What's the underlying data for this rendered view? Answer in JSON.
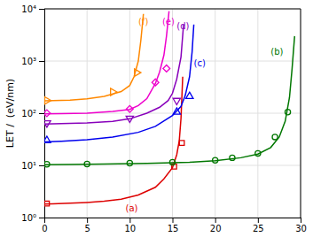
{
  "chart_data": {
    "type": "line",
    "ylabel": "LET /  (eV/nm)",
    "log": "y",
    "grid": true,
    "xlim": [
      0,
      30
    ],
    "xticks": [
      0,
      5,
      10,
      15,
      20,
      25,
      30
    ],
    "ylim": [
      1,
      10000
    ],
    "yticks": [
      {
        "value": 1,
        "label": "10⁰"
      },
      {
        "value": 10,
        "label": "10¹"
      },
      {
        "value": 100,
        "label": "10²"
      },
      {
        "value": 1000,
        "label": "10³"
      },
      {
        "value": 10000,
        "label": "10⁴"
      }
    ],
    "series": [
      {
        "type": "line",
        "color": "#dd0000",
        "x": [
          0.0,
          1,
          3,
          5,
          7,
          9,
          11,
          13,
          14,
          15,
          15.5,
          15.8,
          16.0,
          16.2
        ],
        "values": [
          1.82,
          1.84,
          1.88,
          1.95,
          2.05,
          2.25,
          2.7,
          3.8,
          5.5,
          9.0,
          16.0,
          30.0,
          80.0,
          500.0
        ]
      },
      {
        "type": "scatter",
        "color": "#dd0000",
        "marker": "square",
        "x": [
          0.3,
          15.2,
          16.1
        ],
        "values": [
          1.85,
          9.5,
          27.0
        ]
      },
      {
        "type": "line",
        "color": "#007700",
        "x": [
          0.0,
          3,
          7,
          12,
          17,
          20,
          23,
          25,
          26.5,
          27.5,
          28.2,
          28.7,
          29.0,
          29.3
        ],
        "values": [
          10.3,
          10.4,
          10.6,
          10.9,
          11.5,
          12.3,
          14.0,
          16.5,
          22.0,
          35.0,
          70.0,
          200.0,
          700.0,
          3000.0
        ]
      },
      {
        "type": "scatter",
        "color": "#007700",
        "marker": "circle",
        "x": [
          0.3,
          5,
          10,
          15,
          20,
          22,
          25,
          27,
          28.5
        ],
        "values": [
          10.5,
          10.6,
          11.0,
          11.5,
          12.5,
          14.0,
          17.0,
          35.0,
          105.0
        ]
      },
      {
        "type": "line",
        "color": "#0000ee",
        "x": [
          0.0,
          2,
          5,
          8,
          11,
          13,
          15,
          16,
          16.5,
          17.0,
          17.3,
          17.5
        ],
        "values": [
          28.0,
          29.0,
          31.0,
          35.0,
          43.0,
          56.0,
          90.0,
          135.0,
          220.0,
          500.0,
          1500.0,
          5000.0
        ]
      },
      {
        "type": "scatter",
        "color": "#0000ee",
        "marker": "triangle-up",
        "x": [
          0.3,
          15.5,
          17.0
        ],
        "values": [
          30.0,
          105.0,
          210.0
        ]
      },
      {
        "type": "line",
        "color": "#8800bb",
        "x": [
          0.0,
          2,
          5,
          8,
          10,
          12,
          13.5,
          14.5,
          15.0,
          15.5,
          16.0,
          16.3
        ],
        "values": [
          62.0,
          63.0,
          65.0,
          70.0,
          78.0,
          100.0,
          130.0,
          175.0,
          240.0,
          450.0,
          1200.0,
          5000.0
        ]
      },
      {
        "type": "scatter",
        "color": "#8800bb",
        "marker": "triangle-down",
        "x": [
          0.3,
          10.0,
          15.5
        ],
        "values": [
          65.0,
          80.0,
          175.0
        ]
      },
      {
        "type": "line",
        "color": "#ee00cc",
        "x": [
          0.0,
          2,
          5,
          8,
          10,
          11,
          12,
          13,
          13.5,
          14.0,
          14.3,
          14.6
        ],
        "values": [
          97.0,
          98.0,
          100.0,
          108.0,
          118.0,
          140.0,
          190.0,
          370.0,
          620.0,
          1300.0,
          3000.0,
          9000.0
        ]
      },
      {
        "type": "scatter",
        "color": "#ee00cc",
        "marker": "diamond",
        "x": [
          0.3,
          10.0,
          13.0,
          14.3
        ],
        "values": [
          100.0,
          120.0,
          390.0,
          720.0
        ]
      },
      {
        "type": "line",
        "color": "#ff8800",
        "x": [
          0.0,
          1,
          3,
          5,
          7,
          9,
          10,
          10.5,
          11.0,
          11.3,
          11.6
        ],
        "values": [
          172.0,
          174.0,
          178.0,
          188.0,
          210.0,
          260.0,
          340.0,
          500.0,
          1000.0,
          2500.0,
          8000.0
        ]
      },
      {
        "type": "scatter",
        "color": "#ff8800",
        "marker": "triangle-right",
        "x": [
          0.3,
          8.0,
          10.8
        ],
        "values": [
          175.0,
          255.0,
          600.0
        ]
      }
    ],
    "annotations": [
      {
        "text": "(a)",
        "x": 9.5,
        "y": 1.45,
        "color": "#dd0000"
      },
      {
        "text": "(b)",
        "x": 26.5,
        "y": 1500,
        "color": "#007700"
      },
      {
        "text": "(c)",
        "x": 17.5,
        "y": 900,
        "color": "#0000ee"
      },
      {
        "text": "(d)",
        "x": 15.5,
        "y": 4500,
        "color": "#8800bb"
      },
      {
        "text": "(e)",
        "x": 13.8,
        "y": 5500,
        "color": "#ee00cc"
      },
      {
        "text": "(f)",
        "x": 11.0,
        "y": 5500,
        "color": "#ff8800"
      }
    ]
  }
}
